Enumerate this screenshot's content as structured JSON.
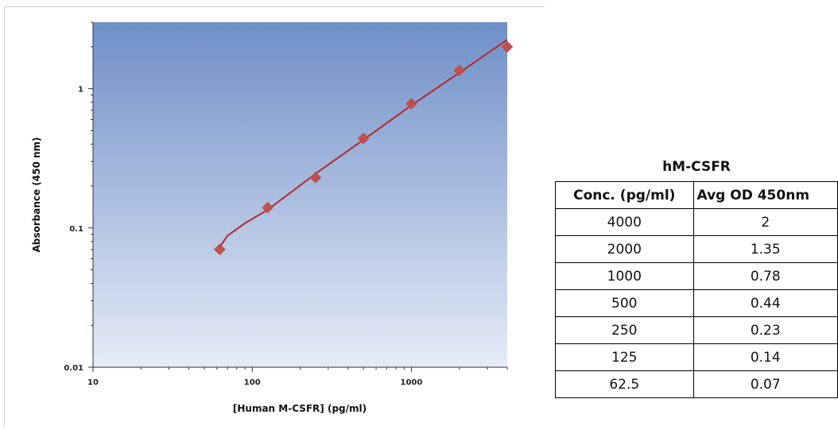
{
  "chart_data": {
    "type": "scatter",
    "title": "",
    "xlabel": "[Human M-CSFR] (pg/ml)",
    "ylabel": "Absorbance (450 nm)",
    "xscale": "log",
    "yscale": "log",
    "xlim": [
      10,
      4000
    ],
    "ylim": [
      0.01,
      3
    ],
    "x_tick_labels": [
      "10",
      "100",
      "1000"
    ],
    "y_tick_labels": [
      "0.01",
      "0.1",
      "1"
    ],
    "grid": false,
    "series": [
      {
        "x": [
          62.5,
          125,
          250,
          500,
          1000,
          2000,
          4000
        ],
        "y": [
          0.07,
          0.14,
          0.23,
          0.44,
          0.78,
          1.35,
          2
        ]
      }
    ],
    "fit_curve": {
      "x": [
        62.5,
        70,
        90,
        125,
        250,
        500,
        1000,
        2000,
        4000
      ],
      "y": [
        0.073,
        0.088,
        0.108,
        0.135,
        0.245,
        0.43,
        0.76,
        1.3,
        2.25
      ]
    },
    "colors": {
      "marker": "#c0504d",
      "line": "#b02a2a",
      "plot_bg_top": "#6f8fc8",
      "plot_bg_bottom": "#e8eef8"
    }
  },
  "table": {
    "title": "hM-CSFR",
    "headers": [
      "Conc. (pg/ml)",
      "Avg OD 450nm"
    ],
    "rows": [
      [
        "4000",
        "2"
      ],
      [
        "2000",
        "1.35"
      ],
      [
        "1000",
        "0.78"
      ],
      [
        "500",
        "0.44"
      ],
      [
        "250",
        "0.23"
      ],
      [
        "125",
        "0.14"
      ],
      [
        "62.5",
        "0.07"
      ]
    ]
  }
}
